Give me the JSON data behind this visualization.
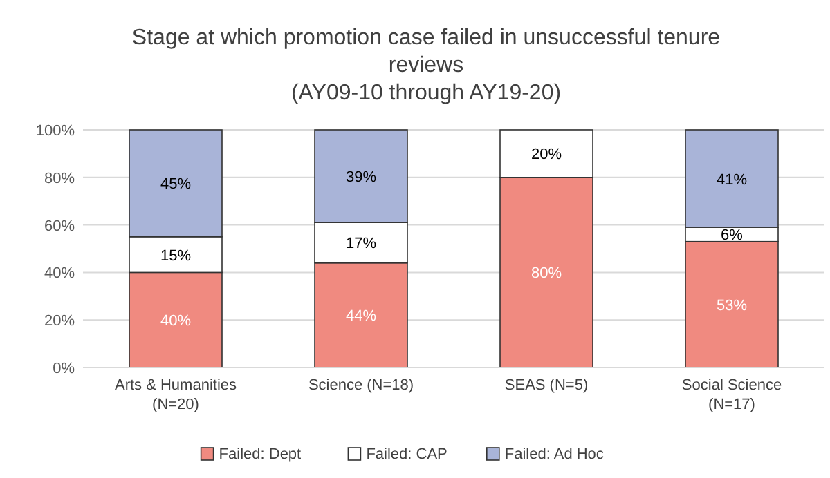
{
  "chart_data": {
    "type": "bar",
    "stacked": true,
    "title": "Stage at which promotion case failed in unsuccessful tenure reviews",
    "subtitle": "(AY09-10 through AY19-20)",
    "categories": [
      "Arts & Humanities (N=20)",
      "Science (N=18)",
      "SEAS (N=5)",
      "Social Science (N=17)"
    ],
    "series": [
      {
        "name": "Failed: Dept",
        "color": "#f08a80",
        "values": [
          40,
          44,
          80,
          53
        ],
        "value_labels": [
          "40%",
          "44%",
          "80%",
          "53%"
        ]
      },
      {
        "name": "Failed: CAP",
        "color": "#ffffff",
        "values": [
          15,
          17,
          20,
          6
        ],
        "value_labels": [
          "15%",
          "17%",
          "20%",
          "6%"
        ]
      },
      {
        "name": "Failed: Ad Hoc",
        "color": "#a9b4d8",
        "values": [
          45,
          39,
          0,
          41
        ],
        "value_labels": [
          "45%",
          "39%",
          null,
          "41%"
        ]
      }
    ],
    "ylim": [
      0,
      100
    ],
    "yticks": [
      {
        "value": 0,
        "label": "0%"
      },
      {
        "value": 20,
        "label": "20%"
      },
      {
        "value": 40,
        "label": "40%"
      },
      {
        "value": 60,
        "label": "60%"
      },
      {
        "value": 80,
        "label": "80%"
      },
      {
        "value": 100,
        "label": "100%"
      }
    ],
    "grid": "y",
    "legend": "bottom"
  }
}
